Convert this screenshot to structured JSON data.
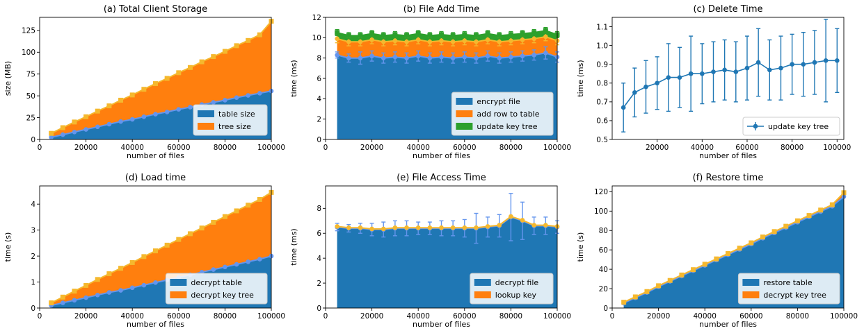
{
  "chart_data": [
    {
      "id": "a",
      "type": "area",
      "title": "(a) Total Client Storage",
      "xlabel": "number of files",
      "ylabel": "size (MB)",
      "xlim": [
        0,
        100000
      ],
      "ylim": [
        0,
        140
      ],
      "xticks": [
        0,
        20000,
        40000,
        60000,
        80000,
        100000
      ],
      "xtick_labels": [
        "0",
        "20000",
        "40000",
        "60000",
        "80000",
        "100000"
      ],
      "yticks": [
        0,
        25,
        50,
        75,
        100,
        125
      ],
      "ytick_labels": [
        "0",
        "25",
        "50",
        "75",
        "100",
        "125"
      ],
      "legend_position": "bottom-right",
      "x_start": 5000,
      "x_end": 100000,
      "x_step": 5000,
      "series": [
        {
          "name": "table size",
          "color": "#1f77b4",
          "marker_color": "#6495ed",
          "values": [
            2.5,
            5.5,
            8.5,
            11.5,
            14.5,
            17.5,
            20.5,
            23,
            26,
            29,
            31.5,
            34.5,
            37,
            40,
            42.5,
            45,
            48,
            50.5,
            53,
            55.5
          ]
        },
        {
          "name": "tree size",
          "color": "#ff7f0e",
          "marker_color": "#f5b82e",
          "values": [
            4.5,
            8,
            11.5,
            14.5,
            18,
            21,
            24.5,
            28,
            31.5,
            35,
            38.5,
            42,
            45.5,
            49,
            52.5,
            56,
            59.5,
            63,
            67,
            80
          ]
        }
      ]
    },
    {
      "id": "b",
      "type": "area",
      "title": "(b) File Add Time",
      "xlabel": "number of files",
      "ylabel": "time (ms)",
      "xlim": [
        0,
        100000
      ],
      "ylim": [
        0,
        12
      ],
      "xticks": [
        0,
        20000,
        40000,
        60000,
        80000,
        100000
      ],
      "xtick_labels": [
        "0",
        "20000",
        "40000",
        "60000",
        "80000",
        "100000"
      ],
      "yticks": [
        0,
        2,
        4,
        6,
        8,
        10,
        12
      ],
      "ytick_labels": [
        "0",
        "2",
        "4",
        "6",
        "8",
        "10",
        "12"
      ],
      "legend_position": "bottom-right",
      "x_start": 5000,
      "x_end": 100000,
      "x_step": 5000,
      "series": [
        {
          "name": "encrypt file",
          "color": "#1f77b4",
          "marker_color": "#6495ed",
          "values": [
            8.3,
            8.0,
            8.0,
            8.2,
            8.0,
            8.1,
            8.0,
            8.2,
            8.0,
            8.1,
            8.0,
            8.1,
            8.0,
            8.2,
            8.0,
            8.1,
            8.2,
            8.3,
            8.5,
            8.1
          ],
          "error": [
            0.3,
            0.4,
            0.6,
            0.5,
            0.5,
            0.5,
            0.5,
            0.5,
            0.5,
            0.5,
            0.5,
            0.5,
            0.5,
            0.5,
            0.5,
            0.5,
            0.5,
            0.5,
            0.6,
            0.5
          ]
        },
        {
          "name": "add row to table",
          "color": "#ff7f0e",
          "marker_color": "#f5b82e",
          "values": [
            1.6,
            1.6,
            1.6,
            1.6,
            1.6,
            1.6,
            1.6,
            1.6,
            1.6,
            1.6,
            1.6,
            1.6,
            1.6,
            1.6,
            1.6,
            1.6,
            1.6,
            1.6,
            1.6,
            1.6
          ],
          "error": [
            0.4,
            0.4,
            0.4,
            0.4,
            0.4,
            0.4,
            0.4,
            0.4,
            0.4,
            0.4,
            0.4,
            0.4,
            0.4,
            0.4,
            0.4,
            0.4,
            0.4,
            0.4,
            0.4,
            0.4
          ]
        },
        {
          "name": "update key tree",
          "color": "#2ca02c",
          "marker_color": "#2ca02c",
          "values": [
            0.6,
            0.6,
            0.6,
            0.6,
            0.6,
            0.6,
            0.6,
            0.6,
            0.6,
            0.6,
            0.6,
            0.6,
            0.6,
            0.6,
            0.6,
            0.6,
            0.6,
            0.6,
            0.6,
            0.6
          ],
          "error": [
            0.3,
            0.3,
            0.3,
            0.3,
            0.3,
            0.3,
            0.3,
            0.3,
            0.3,
            0.3,
            0.3,
            0.3,
            0.3,
            0.3,
            0.3,
            0.3,
            0.3,
            0.3,
            0.3,
            0.3
          ]
        }
      ]
    },
    {
      "id": "c",
      "type": "line",
      "title": "(c) Delete Time",
      "xlabel": "number of files",
      "ylabel": "time (ms)",
      "xlim": [
        0,
        103000
      ],
      "ylim": [
        0.5,
        1.15
      ],
      "xticks": [
        20000,
        40000,
        60000,
        80000,
        100000
      ],
      "xtick_labels": [
        "20000",
        "40000",
        "60000",
        "80000",
        "100000"
      ],
      "yticks": [
        0.5,
        0.6,
        0.7,
        0.8,
        0.9,
        1.0,
        1.1
      ],
      "ytick_labels": [
        "0.5",
        "0.6",
        "0.7",
        "0.8",
        "0.9",
        "1.0",
        "1.1"
      ],
      "legend_position": "bottom-right",
      "x_start": 5000,
      "x_end": 100000,
      "x_step": 5000,
      "series": [
        {
          "name": "update key tree",
          "color": "#1f77b4",
          "values": [
            0.67,
            0.75,
            0.78,
            0.8,
            0.83,
            0.83,
            0.85,
            0.85,
            0.86,
            0.87,
            0.86,
            0.88,
            0.91,
            0.87,
            0.88,
            0.9,
            0.9,
            0.91,
            0.92,
            0.92
          ],
          "error": [
            0.13,
            0.13,
            0.14,
            0.14,
            0.18,
            0.16,
            0.2,
            0.16,
            0.16,
            0.16,
            0.16,
            0.17,
            0.18,
            0.16,
            0.17,
            0.16,
            0.17,
            0.17,
            0.22,
            0.17
          ]
        }
      ]
    },
    {
      "id": "d",
      "type": "area",
      "title": "(d) Load time",
      "xlabel": "number of files",
      "ylabel": "time (s)",
      "xlim": [
        0,
        100000
      ],
      "ylim": [
        0,
        4.7
      ],
      "xticks": [
        0,
        20000,
        40000,
        60000,
        80000,
        100000
      ],
      "xtick_labels": [
        "0",
        "20000",
        "40000",
        "60000",
        "80000",
        "100000"
      ],
      "yticks": [
        0,
        1,
        2,
        3,
        4
      ],
      "ytick_labels": [
        "0",
        "1",
        "2",
        "3",
        "4"
      ],
      "legend_position": "bottom-right",
      "x_start": 5000,
      "x_end": 100000,
      "x_step": 5000,
      "series": [
        {
          "name": "decrypt table",
          "color": "#1f77b4",
          "marker_color": "#6495ed",
          "values": [
            0.1,
            0.2,
            0.3,
            0.4,
            0.5,
            0.6,
            0.68,
            0.78,
            0.88,
            0.98,
            1.08,
            1.18,
            1.28,
            1.38,
            1.48,
            1.58,
            1.68,
            1.78,
            1.88,
            2.0
          ]
        },
        {
          "name": "decrypt key tree",
          "color": "#ff7f0e",
          "marker_color": "#f5b82e",
          "values": [
            0.1,
            0.22,
            0.35,
            0.47,
            0.6,
            0.72,
            0.85,
            0.97,
            1.1,
            1.22,
            1.34,
            1.46,
            1.58,
            1.7,
            1.82,
            1.94,
            2.06,
            2.18,
            2.3,
            2.45
          ]
        }
      ]
    },
    {
      "id": "e",
      "type": "area",
      "title": "(e) File Access Time",
      "xlabel": "number of files",
      "ylabel": "time (ms)",
      "xlim": [
        0,
        100000
      ],
      "ylim": [
        0,
        9.8
      ],
      "xticks": [
        0,
        20000,
        40000,
        60000,
        80000,
        100000
      ],
      "xtick_labels": [
        "0",
        "20000",
        "40000",
        "60000",
        "80000",
        "100000"
      ],
      "yticks": [
        0,
        2,
        4,
        6,
        8
      ],
      "ytick_labels": [
        "0",
        "2",
        "4",
        "6",
        "8"
      ],
      "legend_position": "bottom-right",
      "x_start": 5000,
      "x_end": 100000,
      "x_step": 5000,
      "series": [
        {
          "name": "decrypt file",
          "color": "#1f77b4",
          "marker_color": "#6495ed",
          "values": [
            6.5,
            6.4,
            6.4,
            6.3,
            6.3,
            6.4,
            6.4,
            6.4,
            6.4,
            6.4,
            6.4,
            6.4,
            6.4,
            6.5,
            6.6,
            7.3,
            7.0,
            6.6,
            6.6,
            6.5
          ],
          "error": [
            0.3,
            0.3,
            0.4,
            0.5,
            0.6,
            0.6,
            0.6,
            0.5,
            0.5,
            0.6,
            0.6,
            0.7,
            1.2,
            0.8,
            0.9,
            1.9,
            1.5,
            0.7,
            0.7,
            0.5
          ]
        },
        {
          "name": "lookup key",
          "color": "#ff7f0e",
          "marker_color": "#f5b82e",
          "values": [
            0.05,
            0.05,
            0.05,
            0.05,
            0.05,
            0.05,
            0.05,
            0.05,
            0.05,
            0.05,
            0.05,
            0.05,
            0.05,
            0.05,
            0.05,
            0.05,
            0.05,
            0.05,
            0.05,
            0.05
          ]
        }
      ]
    },
    {
      "id": "f",
      "type": "area",
      "title": "(f) Restore time",
      "xlabel": "number of files",
      "ylabel": "time (s)",
      "xlim": [
        0,
        100000
      ],
      "ylim": [
        0,
        126
      ],
      "xticks": [
        0,
        20000,
        40000,
        60000,
        80000,
        100000
      ],
      "xtick_labels": [
        "0",
        "20000",
        "40000",
        "60000",
        "80000",
        "100000"
      ],
      "yticks": [
        0,
        20,
        40,
        60,
        80,
        100,
        120
      ],
      "ytick_labels": [
        "0",
        "20",
        "40",
        "60",
        "80",
        "100",
        "120"
      ],
      "legend_position": "bottom-right",
      "x_start": 5000,
      "x_end": 100000,
      "x_step": 5000,
      "series": [
        {
          "name": "restore table",
          "color": "#1f77b4",
          "marker_color": "#6495ed",
          "values": [
            5,
            10.5,
            16,
            22,
            27.5,
            33,
            38.5,
            44,
            49.5,
            55,
            60.5,
            66,
            72,
            77.5,
            83,
            88.5,
            94,
            99.5,
            105,
            115
          ]
        },
        {
          "name": "decrypt key tree",
          "color": "#ff7f0e",
          "marker_color": "#f5b82e",
          "values": [
            1,
            1,
            1,
            1,
            1,
            1.1,
            1.1,
            1.2,
            1.2,
            1.2,
            1.3,
            1.3,
            1.3,
            1.4,
            1.4,
            1.5,
            1.5,
            1.6,
            1.6,
            4
          ]
        }
      ]
    }
  ]
}
